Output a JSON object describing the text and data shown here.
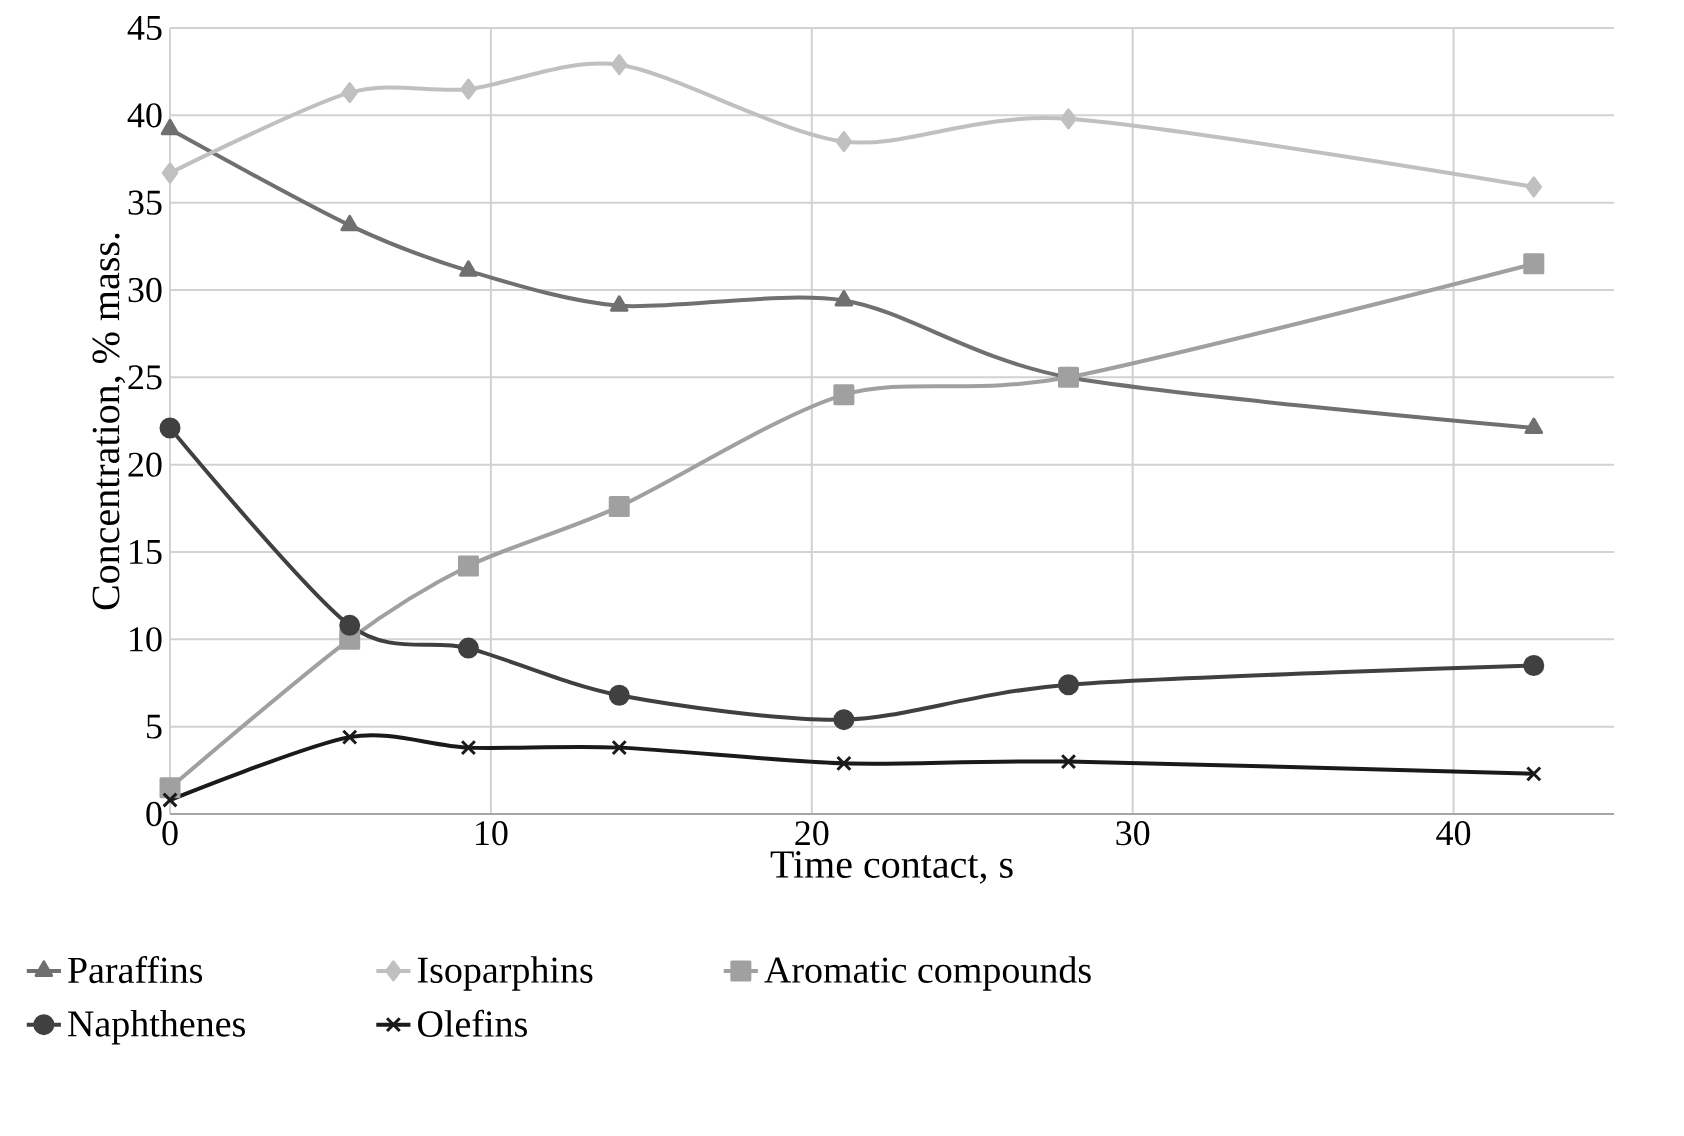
{
  "chart_data": {
    "type": "line",
    "xlabel": "Time contact, s",
    "ylabel": "Concentration, % mass.",
    "x": [
      0,
      5.6,
      9.3,
      14,
      21,
      28,
      42.5
    ],
    "series": [
      {
        "name": "Paraffins",
        "color": "#707070",
        "marker": "triangle",
        "values": [
          39.2,
          33.7,
          31.1,
          29.1,
          29.4,
          25,
          22.1
        ]
      },
      {
        "name": "Isoparphins",
        "color": "#c0c0c0",
        "marker": "diamond",
        "values": [
          36.7,
          41.3,
          41.5,
          42.9,
          38.5,
          39.8,
          35.9
        ]
      },
      {
        "name": "Aromatic compounds",
        "color": "#a0a0a0",
        "marker": "square",
        "values": [
          1.5,
          10,
          14.2,
          17.6,
          24,
          25,
          31.5
        ]
      },
      {
        "name": "Naphthenes",
        "color": "#404040",
        "marker": "circle",
        "values": [
          22.1,
          10.8,
          9.5,
          6.8,
          5.4,
          7.4,
          8.5
        ]
      },
      {
        "name": "Olefins",
        "color": "#1a1a1a",
        "marker": "cross",
        "values": [
          0.8,
          4.4,
          3.8,
          3.8,
          2.9,
          3.0,
          2.3
        ]
      }
    ],
    "xlim": [
      0,
      45
    ],
    "xticks": [
      0,
      10,
      20,
      30,
      40
    ],
    "ylim": [
      0,
      45
    ],
    "yticks": [
      0,
      5,
      10,
      15,
      20,
      25,
      30,
      35,
      40,
      45
    ],
    "grid": true,
    "legend": "bottom",
    "line_style": "solid"
  }
}
